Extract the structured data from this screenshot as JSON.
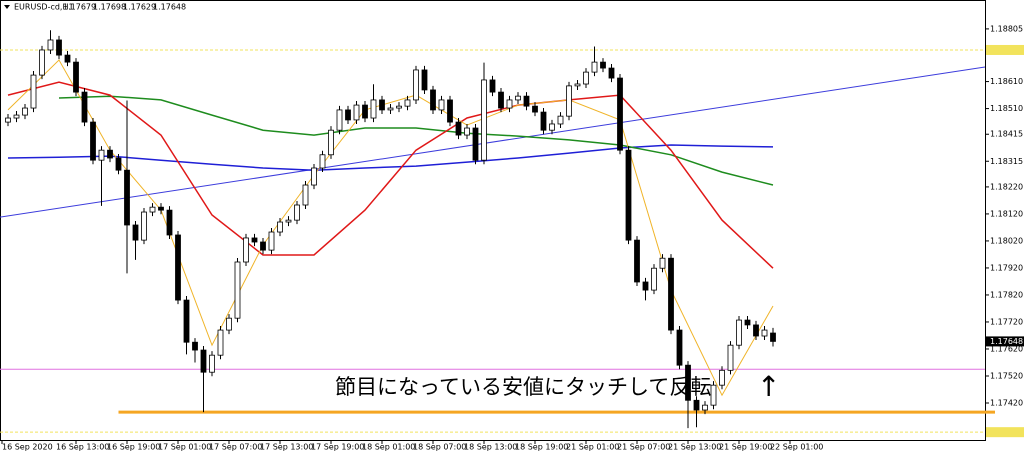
{
  "chart_data": {
    "type": "candlestick",
    "symbol": "EURUSD-cd,H1",
    "categories": [
      "16 Sep 2020",
      null,
      null,
      null,
      null,
      null,
      null,
      null,
      "16 Sep 13:00",
      null,
      null,
      null,
      null,
      null,
      "16 Sep 19:00",
      null,
      null,
      null,
      null,
      null,
      "17 Sep 01:00",
      null,
      null,
      null,
      null,
      null,
      "17 Sep 07:00",
      null,
      null,
      null,
      null,
      null,
      "17 Sep 13:00",
      null,
      null,
      null,
      null,
      null,
      "17 Sep 19:00",
      null,
      null,
      null,
      null,
      null,
      "18 Sep 01:00",
      null,
      null,
      null,
      null,
      null,
      "18 Sep 07:00",
      null,
      null,
      null,
      null,
      null,
      "18 Sep 13:00",
      null,
      null,
      null,
      null,
      null,
      "18 Sep 19:00",
      null,
      null,
      null,
      null,
      null,
      "21 Sep 01:00",
      null,
      null,
      null,
      null,
      null,
      "21 Sep 07:00",
      null,
      null,
      null,
      null,
      null,
      "21 Sep 13:00",
      null,
      null,
      null,
      null,
      null,
      "21 Sep 19:00",
      null,
      null,
      null,
      null,
      null,
      "22 Sep 01:00"
    ],
    "open": [
      1.1846,
      1.18475,
      1.18486,
      1.18512,
      1.18634,
      1.18727,
      1.18764,
      1.18708,
      1.18682,
      1.18571,
      1.1846,
      1.18319,
      1.18356,
      1.18327,
      1.18282,
      1.18079,
      1.18023,
      1.18127,
      1.18145,
      1.18134,
      1.18042,
      1.17801,
      1.17645,
      1.17616,
      1.17534,
      1.17597,
      1.1769,
      1.17734,
      1.17942,
      1.18031,
      1.18016,
      1.17986,
      1.18053,
      1.1809,
      1.18097,
      1.18153,
      1.18227,
      1.1829,
      1.18339,
      1.1843,
      1.18505,
      1.18468,
      1.18523,
      1.18475,
      1.18542,
      1.18505,
      1.18512,
      1.18519,
      1.18542,
      1.18653,
      1.18579,
      1.18505,
      1.18542,
      1.1846,
      1.18412,
      1.18438,
      1.18319,
      1.18616,
      1.18571,
      1.18512,
      1.18542,
      1.18556,
      1.18519,
      1.18497,
      1.1843,
      1.18453,
      1.18482,
      1.18594,
      1.18601,
      1.18645,
      1.18682,
      1.1866,
      1.18623,
      1.18356,
      1.18023,
      1.17868,
      1.17838,
      1.17919,
      1.17956,
      1.1769,
      1.1756,
      1.1743,
      1.17394,
      1.17412,
      1.17486,
      1.17541,
      1.17634,
      1.17727,
      1.17709,
      1.17668,
      1.17679,
      null,
      null
    ],
    "high": [
      1.1849,
      1.18501,
      1.18527,
      1.18649,
      1.18742,
      1.188,
      1.18779,
      1.18723,
      1.18697,
      1.18586,
      1.18475,
      1.18371,
      1.18371,
      1.18342,
      1.1854,
      1.18094,
      1.18142,
      1.1816,
      1.1816,
      1.18149,
      1.18057,
      1.17816,
      1.1766,
      1.17631,
      1.17612,
      1.17705,
      1.17749,
      1.17957,
      1.18046,
      1.18046,
      1.18031,
      1.18068,
      1.18105,
      1.18112,
      1.18168,
      1.18242,
      1.18305,
      1.18354,
      1.18445,
      1.1852,
      1.1852,
      1.18538,
      1.18538,
      1.186,
      1.18557,
      1.18527,
      1.18534,
      1.18557,
      1.18668,
      1.18668,
      1.18594,
      1.18557,
      1.18557,
      1.18475,
      1.18453,
      1.18453,
      1.1868,
      1.18631,
      1.18586,
      1.18557,
      1.18571,
      1.18571,
      1.18534,
      1.18512,
      1.18468,
      1.18497,
      1.18609,
      1.18616,
      1.1866,
      1.1874,
      1.18697,
      1.18675,
      1.18638,
      1.18371,
      1.18038,
      1.17883,
      1.17934,
      1.17971,
      1.17971,
      1.17705,
      1.17575,
      1.17445,
      1.17427,
      1.17501,
      1.17556,
      1.17649,
      1.17742,
      1.17742,
      1.17724,
      1.17705,
      1.17698,
      null,
      null
    ],
    "low": [
      1.18445,
      1.1846,
      1.18471,
      1.18497,
      1.18619,
      1.18712,
      1.18693,
      1.18667,
      1.18556,
      1.18445,
      1.18304,
      1.1815,
      1.18312,
      1.18267,
      1.179,
      1.1795,
      1.18008,
      1.18112,
      1.18119,
      1.18027,
      1.17786,
      1.176,
      1.1757,
      1.17386,
      1.17519,
      1.17582,
      1.17675,
      1.17719,
      1.17927,
      1.18001,
      1.17971,
      1.17971,
      1.18038,
      1.18075,
      1.18082,
      1.18138,
      1.18212,
      1.18275,
      1.18324,
      1.18415,
      1.18453,
      1.18453,
      1.1846,
      1.1846,
      1.1849,
      1.1849,
      1.18497,
      1.18504,
      1.18527,
      1.18564,
      1.1849,
      1.1849,
      1.18445,
      1.18397,
      1.18397,
      1.18304,
      1.18304,
      1.18556,
      1.18497,
      1.18497,
      1.18527,
      1.18504,
      1.18482,
      1.18415,
      1.18415,
      1.18438,
      1.18467,
      1.18579,
      1.18586,
      1.1863,
      1.18645,
      1.18608,
      1.18341,
      1.18008,
      1.17853,
      1.178,
      1.17823,
      1.17904,
      1.17675,
      1.17545,
      1.17327,
      1.1733,
      1.17379,
      1.17397,
      1.17471,
      1.17526,
      1.17619,
      1.17694,
      1.17653,
      1.17653,
      1.17629,
      null,
      null
    ],
    "close": [
      1.18475,
      1.18486,
      1.18512,
      1.18634,
      1.18727,
      1.18764,
      1.18708,
      1.18682,
      1.18571,
      1.1846,
      1.18319,
      1.18356,
      1.18327,
      1.18282,
      1.18079,
      1.18023,
      1.18127,
      1.18145,
      1.18134,
      1.18042,
      1.17801,
      1.17645,
      1.17616,
      1.17534,
      1.17597,
      1.1769,
      1.17734,
      1.17942,
      1.18031,
      1.18016,
      1.17986,
      1.18053,
      1.1809,
      1.18097,
      1.18153,
      1.18227,
      1.1829,
      1.18339,
      1.1843,
      1.18505,
      1.18468,
      1.18523,
      1.18475,
      1.18542,
      1.18505,
      1.18512,
      1.18519,
      1.18542,
      1.18653,
      1.18579,
      1.18505,
      1.18542,
      1.1846,
      1.18412,
      1.18438,
      1.18319,
      1.18616,
      1.18571,
      1.18512,
      1.18542,
      1.18556,
      1.18519,
      1.18497,
      1.1843,
      1.18453,
      1.18482,
      1.18594,
      1.18601,
      1.18645,
      1.18682,
      1.1866,
      1.18623,
      1.18356,
      1.18023,
      1.17868,
      1.17838,
      1.17919,
      1.17956,
      1.1769,
      1.1756,
      1.1743,
      1.17394,
      1.17412,
      1.17486,
      1.17541,
      1.17634,
      1.17727,
      1.17709,
      1.17668,
      1.1769,
      1.17648,
      null,
      null
    ],
    "lines": [
      {
        "color": "#1f1fd6",
        "x": [
          0,
          6,
          12,
          18,
          24,
          30,
          36,
          42,
          48,
          54,
          60,
          66,
          72,
          78,
          84,
          90
        ],
        "values": [
          1.18327,
          1.1833,
          1.18334,
          1.18319,
          1.18304,
          1.1829,
          1.18282,
          1.1829,
          1.18297,
          1.18312,
          1.18327,
          1.18345,
          1.18364,
          1.18375,
          1.18371,
          1.18368
        ]
      },
      {
        "color": "#1e8c1e",
        "x": [
          6,
          12,
          18,
          24,
          30,
          36,
          42,
          48,
          54,
          60,
          66,
          72,
          78,
          84,
          90
        ],
        "values": [
          1.18549,
          1.18556,
          1.18542,
          1.18486,
          1.1843,
          1.18412,
          1.18438,
          1.18438,
          1.18419,
          1.18408,
          1.18394,
          1.18375,
          1.18339,
          1.18275,
          1.18227
        ]
      },
      {
        "color": "#e01818",
        "x": [
          0,
          6,
          12,
          18,
          24,
          30,
          36,
          42,
          48,
          54,
          60,
          66,
          72,
          78,
          84,
          90
        ],
        "values": [
          1.1856,
          1.18608,
          1.1856,
          1.18412,
          1.18116,
          1.17968,
          1.17968,
          1.18134,
          1.18356,
          1.18475,
          1.18523,
          1.18542,
          1.1856,
          1.18356,
          1.18097,
          1.17919
        ]
      },
      {
        "color": "#f0b429",
        "x": [
          0,
          6,
          12,
          18,
          24,
          30,
          36,
          42,
          48,
          54,
          60,
          66,
          72,
          78,
          84,
          90
        ],
        "values": [
          1.18505,
          1.1869,
          1.18356,
          1.18134,
          1.17634,
          1.18005,
          1.18264,
          1.18505,
          1.1856,
          1.18449,
          1.18523,
          1.18542,
          1.18468,
          1.17838,
          1.17449,
          1.17779
        ]
      }
    ],
    "trendline": {
      "color": "#3c3cdc",
      "values": [
        1.18108,
        1.18664
      ]
    },
    "levels": [
      {
        "value": 1.18727,
        "color": "#f2e35c",
        "dash": true
      },
      {
        "value": 1.17312,
        "color": "#f2e35c",
        "dash": true
      },
      {
        "value": 1.17545,
        "color": "#e070e0",
        "dash": false
      },
      {
        "value": 1.17386,
        "color": "#f5a623",
        "dash": false,
        "from": 13,
        "width": 3
      }
    ],
    "ylim": [
      1.17283,
      1.18912
    ],
    "yticks": [
      1.18805,
      {
        "value": 1.1861,
        "label": "1.18610"
      },
      {
        "value": 1.1851,
        "label": "1.18510"
      },
      1.18415,
      1.18315,
      {
        "value": 1.1822,
        "label": "1.18220"
      },
      {
        "value": 1.1812,
        "label": "1.18120"
      },
      {
        "value": 1.1802,
        "label": "1.18020"
      },
      {
        "value": 1.1792,
        "label": "1.17920"
      },
      {
        "value": 1.1782,
        "label": "1.17820"
      },
      {
        "value": 1.1772,
        "label": "1.17720"
      },
      {
        "value": 1.1762,
        "label": "1.17620"
      },
      {
        "value": 1.1752,
        "label": "1.17520"
      },
      {
        "value": 1.1742,
        "label": "1.17420"
      }
    ],
    "annotation": "節目になっている安値にタッチして反転",
    "arrow": "↑"
  }
}
